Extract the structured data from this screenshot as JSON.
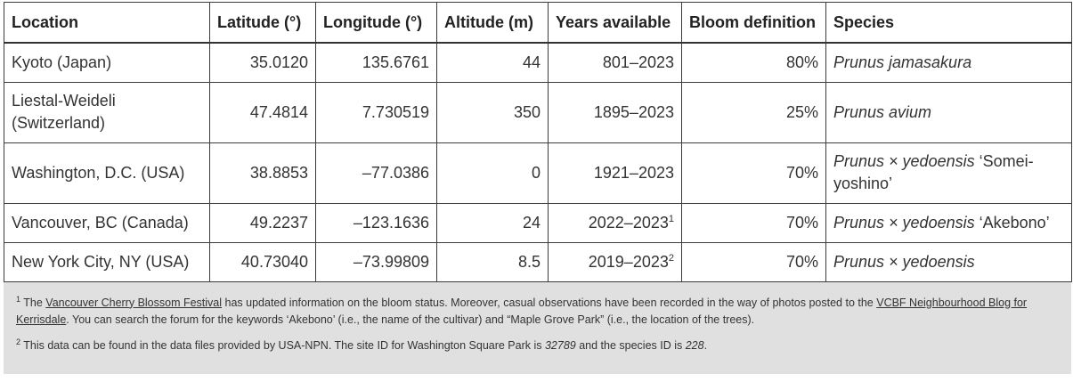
{
  "columns": [
    "Location",
    "Latitude (°)",
    "Longitude (°)",
    "Altitude (m)",
    "Years available",
    "Bloom definition",
    "Species"
  ],
  "rows": [
    {
      "location": "Kyoto (Japan)",
      "latitude": "35.0120",
      "longitude": "135.6761",
      "altitude": "44",
      "years": "801–2023",
      "years_note": "",
      "bloom": "80%",
      "species": "Prunus jamasakura",
      "cultivar": ""
    },
    {
      "location": "Liestal-Weideli (Switzerland)",
      "latitude": "47.4814",
      "longitude": "7.730519",
      "altitude": "350",
      "years": "1895–2023",
      "years_note": "",
      "bloom": "25%",
      "species": "Prunus avium",
      "cultivar": ""
    },
    {
      "location": "Washington, D.C. (USA)",
      "latitude": "38.8853",
      "longitude": "–77.0386",
      "altitude": "0",
      "years": "1921–2023",
      "years_note": "",
      "bloom": "70%",
      "species": "Prunus × yedoensis",
      "cultivar": " ‘Somei-yoshino’"
    },
    {
      "location": "Vancouver, BC (Canada)",
      "latitude": "49.2237",
      "longitude": "–123.1636",
      "altitude": "24",
      "years": "2022–2023",
      "years_note": "1",
      "bloom": "70%",
      "species": "Prunus × yedoensis",
      "cultivar": " ‘Akebono’"
    },
    {
      "location": "New York City, NY (USA)",
      "latitude": "40.73040",
      "longitude": "–73.99809",
      "altitude": "8.5",
      "years": "2019–2023",
      "years_note": "2",
      "bloom": "70%",
      "species": "Prunus × yedoensis",
      "cultivar": ""
    }
  ],
  "footnotes": {
    "n1": {
      "mark": "1",
      "t1": " The ",
      "link1": "Vancouver Cherry Blossom Festival",
      "t2": " has updated information on the bloom status. Moreover, casual observations have been recorded in the way of photos posted to the ",
      "link2": "VCBF Neighbourhood Blog for Kerrisdale",
      "t3": ". You can search the forum for the keywords ‘Akebono’ (i.e., the name of the cultivar) and “Maple Grove Park” (i.e., the location of the trees)."
    },
    "n2": {
      "mark": "2",
      "t1": " This data can be found in the data files provided by USA-NPN. The site ID for Washington Square Park is ",
      "site_id": "32789",
      "t2": " and the species ID is ",
      "species_id": "228",
      "t3": "."
    }
  }
}
